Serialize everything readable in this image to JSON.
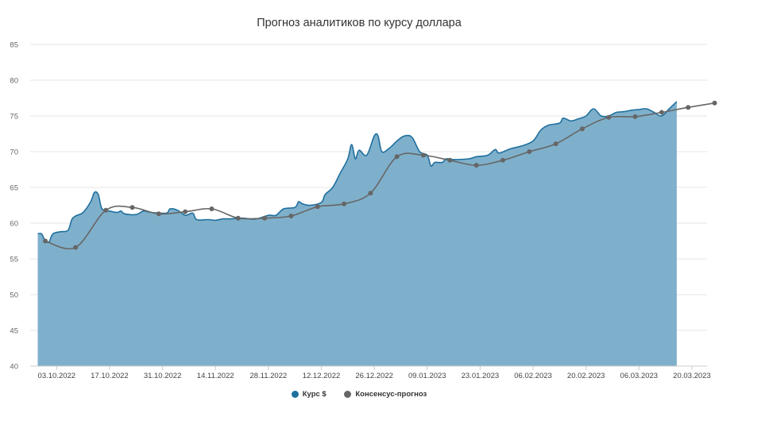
{
  "chart_data": {
    "type": "area",
    "title": "Прогноз аналитиков по курсу доллара",
    "xlabel": "",
    "ylabel": "",
    "ylim": [
      40,
      85
    ],
    "yticks": [
      40,
      45,
      50,
      55,
      60,
      65,
      70,
      75,
      80,
      85
    ],
    "xticks": [
      "03.10.2022",
      "17.10.2022",
      "31.10.2022",
      "14.11.2022",
      "28.11.2022",
      "12.12.2022",
      "26.12.2022",
      "09.01.2023",
      "23.01.2023",
      "06.02.2023",
      "20.02.2023",
      "06.03.2023",
      "20.03.2023"
    ],
    "xlim": [
      "2022-09-26",
      "2023-03-24"
    ],
    "grid": true,
    "legend_position": "bottom",
    "series": [
      {
        "name": "Курс $",
        "kind": "area",
        "color": "#1f6f9e",
        "fill": "#7fb0cb",
        "points": [
          [
            "2022-09-28",
            58.5
          ],
          [
            "2022-09-29",
            58.5
          ],
          [
            "2022-09-30",
            57.5
          ],
          [
            "2022-10-01",
            57.4
          ],
          [
            "2022-10-02",
            58.5
          ],
          [
            "2022-10-04",
            58.8
          ],
          [
            "2022-10-06",
            59.0
          ],
          [
            "2022-10-07",
            60.5
          ],
          [
            "2022-10-08",
            61.0
          ],
          [
            "2022-10-10",
            61.5
          ],
          [
            "2022-10-12",
            63.0
          ],
          [
            "2022-10-13",
            64.3
          ],
          [
            "2022-10-14",
            64.0
          ],
          [
            "2022-10-15",
            62.0
          ],
          [
            "2022-10-17",
            61.7
          ],
          [
            "2022-10-19",
            61.5
          ],
          [
            "2022-10-20",
            61.7
          ],
          [
            "2022-10-21",
            61.3
          ],
          [
            "2022-10-24",
            61.2
          ],
          [
            "2022-10-26",
            61.7
          ],
          [
            "2022-10-28",
            61.5
          ],
          [
            "2022-11-01",
            61.4
          ],
          [
            "2022-11-02",
            62.0
          ],
          [
            "2022-11-04",
            61.8
          ],
          [
            "2022-11-06",
            61.1
          ],
          [
            "2022-11-08",
            61.4
          ],
          [
            "2022-11-09",
            60.5
          ],
          [
            "2022-11-12",
            60.5
          ],
          [
            "2022-11-14",
            60.4
          ],
          [
            "2022-11-16",
            60.6
          ],
          [
            "2022-11-18",
            60.6
          ],
          [
            "2022-11-21",
            60.7
          ],
          [
            "2022-11-23",
            60.6
          ],
          [
            "2022-11-25",
            60.6
          ],
          [
            "2022-11-28",
            61.1
          ],
          [
            "2022-11-30",
            61.1
          ],
          [
            "2022-12-02",
            62.0
          ],
          [
            "2022-12-05",
            62.2
          ],
          [
            "2022-12-06",
            63.0
          ],
          [
            "2022-12-07",
            62.7
          ],
          [
            "2022-12-09",
            62.5
          ],
          [
            "2022-12-12",
            62.9
          ],
          [
            "2022-12-13",
            64.0
          ],
          [
            "2022-12-15",
            65.0
          ],
          [
            "2022-12-17",
            67.0
          ],
          [
            "2022-12-19",
            69.0
          ],
          [
            "2022-12-20",
            71.0
          ],
          [
            "2022-12-21",
            69.0
          ],
          [
            "2022-12-22",
            70.2
          ],
          [
            "2022-12-24",
            69.5
          ],
          [
            "2022-12-26",
            72.2
          ],
          [
            "2022-12-27",
            72.2
          ],
          [
            "2022-12-28",
            70.0
          ],
          [
            "2022-12-30",
            70.5
          ],
          [
            "2023-01-01",
            71.5
          ],
          [
            "2023-01-03",
            72.2
          ],
          [
            "2023-01-05",
            72.0
          ],
          [
            "2023-01-07",
            70.0
          ],
          [
            "2023-01-09",
            69.5
          ],
          [
            "2023-01-10",
            68.0
          ],
          [
            "2023-01-11",
            68.5
          ],
          [
            "2023-01-13",
            68.5
          ],
          [
            "2023-01-14",
            69.0
          ],
          [
            "2023-01-16",
            68.9
          ],
          [
            "2023-01-20",
            69.0
          ],
          [
            "2023-01-22",
            69.3
          ],
          [
            "2023-01-25",
            69.5
          ],
          [
            "2023-01-27",
            70.3
          ],
          [
            "2023-01-28",
            69.8
          ],
          [
            "2023-01-31",
            70.4
          ],
          [
            "2023-02-03",
            70.8
          ],
          [
            "2023-02-06",
            71.5
          ],
          [
            "2023-02-08",
            73.0
          ],
          [
            "2023-02-10",
            73.7
          ],
          [
            "2023-02-13",
            74.0
          ],
          [
            "2023-02-14",
            74.7
          ],
          [
            "2023-02-16",
            74.3
          ],
          [
            "2023-02-18",
            74.6
          ],
          [
            "2023-02-20",
            75.0
          ],
          [
            "2023-02-22",
            76.0
          ],
          [
            "2023-02-24",
            75.0
          ],
          [
            "2023-02-26",
            75.0
          ],
          [
            "2023-02-28",
            75.5
          ],
          [
            "2023-03-02",
            75.6
          ],
          [
            "2023-03-04",
            75.8
          ],
          [
            "2023-03-06",
            75.9
          ],
          [
            "2023-03-08",
            76.0
          ],
          [
            "2023-03-10",
            75.5
          ],
          [
            "2023-03-12",
            75.0
          ],
          [
            "2023-03-14",
            76.0
          ],
          [
            "2023-03-16",
            77.0
          ]
        ]
      },
      {
        "name": "Консенсус-прогноз",
        "kind": "line",
        "color": "#666666",
        "points": [
          [
            "2022-09-30",
            57.5
          ],
          [
            "2022-10-08",
            56.6
          ],
          [
            "2022-10-16",
            61.8
          ],
          [
            "2022-10-23",
            62.2
          ],
          [
            "2022-10-30",
            61.3
          ],
          [
            "2022-11-06",
            61.6
          ],
          [
            "2022-11-13",
            62.0
          ],
          [
            "2022-11-20",
            60.7
          ],
          [
            "2022-11-27",
            60.7
          ],
          [
            "2022-12-04",
            61.0
          ],
          [
            "2022-12-11",
            62.3
          ],
          [
            "2022-12-18",
            62.7
          ],
          [
            "2022-12-25",
            64.2
          ],
          [
            "2023-01-01",
            69.3
          ],
          [
            "2023-01-08",
            69.5
          ],
          [
            "2023-01-15",
            68.8
          ],
          [
            "2023-01-22",
            68.1
          ],
          [
            "2023-01-29",
            68.8
          ],
          [
            "2023-02-05",
            70.0
          ],
          [
            "2023-02-12",
            71.1
          ],
          [
            "2023-02-19",
            73.2
          ],
          [
            "2023-02-26",
            74.8
          ],
          [
            "2023-03-05",
            74.9
          ],
          [
            "2023-03-12",
            75.5
          ],
          [
            "2023-03-19",
            76.2
          ],
          [
            "2023-03-26",
            76.8
          ]
        ]
      }
    ]
  }
}
